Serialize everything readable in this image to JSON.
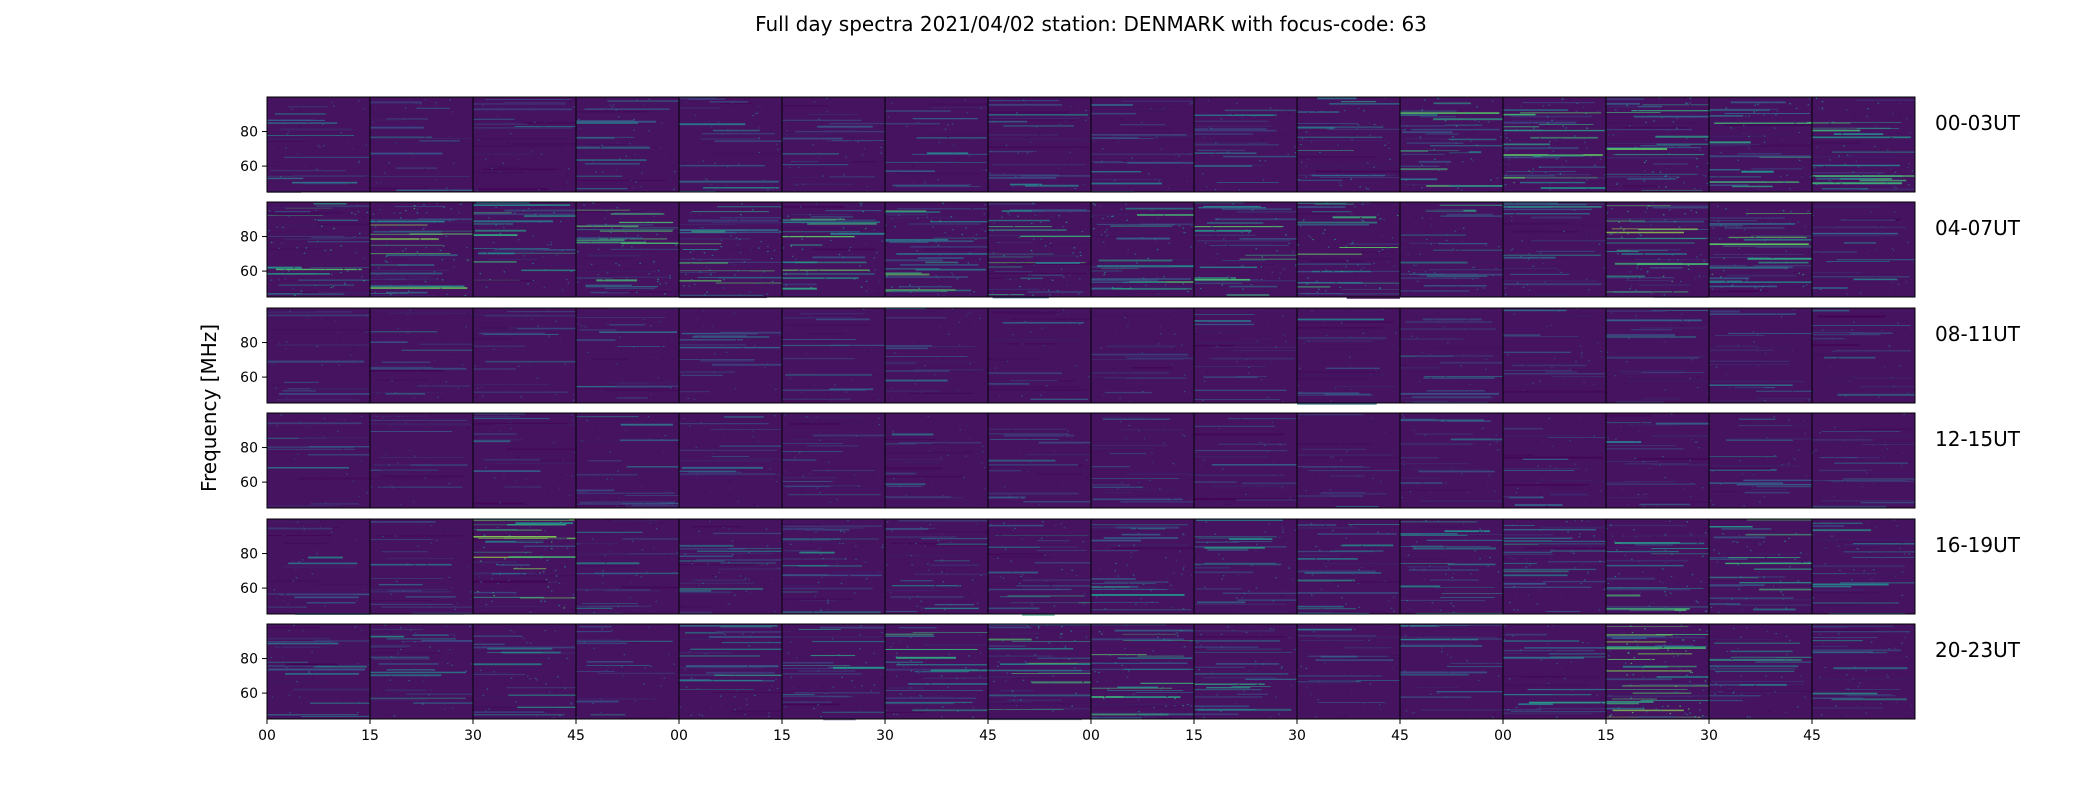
{
  "chart_data": {
    "type": "heatmap",
    "title": "Full day spectra 2021/04/02 station: DENMARK with focus-code: 63",
    "ylabel": "Frequency [MHz]",
    "xlabel": "",
    "ylim": [
      45,
      100
    ],
    "yticks": [
      60,
      80
    ],
    "xtick_labels": [
      "00",
      "15",
      "30",
      "45",
      "00",
      "15",
      "30",
      "45",
      "00",
      "15",
      "30",
      "45",
      "00",
      "15",
      "30",
      "45"
    ],
    "panels_per_row": 16,
    "colormap": [
      "#440154",
      "#3b528b",
      "#21918c",
      "#5ec962",
      "#fde725"
    ],
    "background_color": "#45135f",
    "rows": [
      {
        "label": "00-03UT",
        "intensity": [
          0.15,
          0.12,
          0.15,
          0.2,
          0.2,
          0.15,
          0.15,
          0.2,
          0.2,
          0.25,
          0.35,
          0.5,
          0.55,
          0.55,
          0.45,
          0.45
        ]
      },
      {
        "label": "04-07UT",
        "intensity": [
          0.55,
          0.65,
          0.4,
          0.55,
          0.55,
          0.55,
          0.55,
          0.55,
          0.5,
          0.5,
          0.6,
          0.3,
          0.25,
          0.7,
          0.6,
          0.1
        ]
      },
      {
        "label": "08-11UT",
        "intensity": [
          0.05,
          0.05,
          0.1,
          0.05,
          0.05,
          0.05,
          0.05,
          0.05,
          0.05,
          0.1,
          0.1,
          0.1,
          0.1,
          0.1,
          0.1,
          0.1
        ]
      },
      {
        "label": "12-15UT",
        "intensity": [
          0.05,
          0.05,
          0.05,
          0.1,
          0.05,
          0.1,
          0.1,
          0.05,
          0.05,
          0.05,
          0.05,
          0.1,
          0.05,
          0.15,
          0.1,
          0.1
        ]
      },
      {
        "label": "16-19UT",
        "intensity": [
          0.15,
          0.1,
          0.7,
          0.2,
          0.25,
          0.3,
          0.25,
          0.35,
          0.3,
          0.3,
          0.25,
          0.3,
          0.35,
          0.45,
          0.45,
          0.25
        ]
      },
      {
        "label": "20-23UT",
        "intensity": [
          0.2,
          0.3,
          0.25,
          0.15,
          0.3,
          0.3,
          0.4,
          0.5,
          0.55,
          0.3,
          0.15,
          0.15,
          0.3,
          0.9,
          0.3,
          0.25
        ]
      }
    ]
  }
}
